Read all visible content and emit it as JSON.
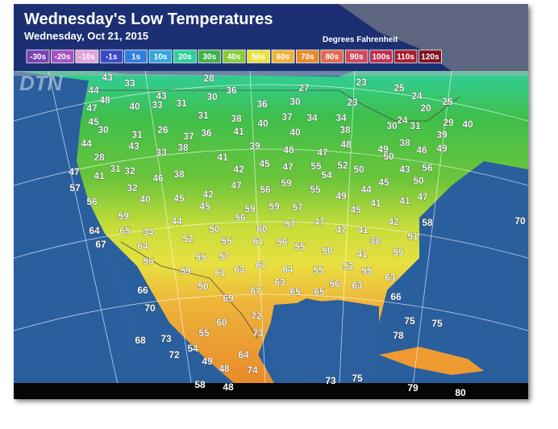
{
  "header": {
    "title": "Wednesday's Low Temperatures",
    "subtitle": "Wednesday, Oct 21, 2015",
    "units": "Degrees Fahrenheit"
  },
  "legend": {
    "labels": [
      "-30s",
      "-20s",
      "-10s",
      "-1s",
      "1s",
      "10s",
      "20s",
      "30s",
      "40s",
      "50s",
      "60s",
      "70s",
      "80s",
      "90s",
      "100s",
      "110s",
      "120s"
    ]
  },
  "logo": "DTN",
  "temperatures": [
    43,
    33,
    28,
    36,
    27,
    23,
    25,
    24,
    25,
    20,
    44,
    48,
    43,
    30,
    33,
    31,
    36,
    30,
    23,
    47,
    40,
    31,
    38,
    37,
    34,
    34,
    40,
    29,
    45,
    40,
    30,
    24,
    31,
    30,
    31,
    26,
    37,
    36,
    41,
    40,
    38,
    39,
    44,
    43,
    38,
    39,
    48,
    47,
    48,
    49,
    50,
    38,
    46,
    49,
    28,
    33,
    41,
    31,
    32,
    46,
    38,
    42,
    45,
    47,
    55,
    52,
    50,
    43,
    56,
    47,
    41,
    54,
    50,
    57,
    32,
    47,
    56,
    59,
    55,
    44,
    45,
    56,
    40,
    45,
    42,
    49,
    41,
    41,
    47,
    45,
    59,
    59,
    57,
    45,
    59,
    44,
    56,
    60,
    57,
    47,
    42,
    58,
    70,
    64,
    65,
    34,
    50,
    47,
    41,
    51,
    67,
    64,
    52,
    55,
    61,
    56,
    55,
    50,
    38,
    55,
    55,
    57,
    67,
    64,
    55,
    52,
    55,
    41,
    55,
    59,
    61,
    63,
    63,
    63,
    50,
    67,
    65,
    65,
    56,
    63,
    66,
    69,
    66,
    70,
    72,
    75,
    75,
    60,
    73,
    55,
    78,
    68,
    73,
    54,
    72,
    64,
    49,
    48,
    74,
    58,
    48,
    73,
    75,
    79,
    80
  ]
}
